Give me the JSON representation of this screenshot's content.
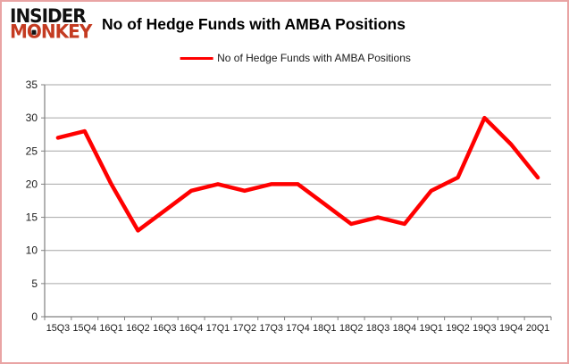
{
  "logo": {
    "line1": "INSIDER",
    "line2_pre": "M",
    "line2_o": "O",
    "line2_post": "NKEY"
  },
  "header": {
    "title": "No of Hedge Funds with AMBA Positions"
  },
  "legend": {
    "label": "No of Hedge Funds with AMBA Positions",
    "line_color": "#ff0000"
  },
  "chart_data": {
    "type": "line",
    "title": "No of Hedge Funds with AMBA Positions",
    "categories": [
      "15Q3",
      "15Q4",
      "16Q1",
      "16Q2",
      "16Q3",
      "16Q4",
      "17Q1",
      "17Q2",
      "17Q3",
      "17Q4",
      "18Q1",
      "18Q2",
      "18Q3",
      "18Q4",
      "19Q1",
      "19Q2",
      "19Q3",
      "19Q4",
      "20Q1"
    ],
    "series": [
      {
        "name": "No of Hedge Funds with AMBA Positions",
        "color": "#ff0000",
        "values": [
          27,
          28,
          20,
          13,
          16,
          19,
          20,
          19,
          20,
          20,
          17,
          14,
          15,
          14,
          19,
          21,
          30,
          26,
          21
        ]
      }
    ],
    "xlabel": "",
    "ylabel": "",
    "ylim": [
      0,
      35
    ],
    "yticks": [
      0,
      5,
      10,
      15,
      20,
      25,
      30,
      35
    ],
    "grid": true,
    "legend_position": "top",
    "colors": {
      "gridline": "#a6a6a6",
      "axis": "#808080",
      "label": "#1a1a1a"
    }
  }
}
